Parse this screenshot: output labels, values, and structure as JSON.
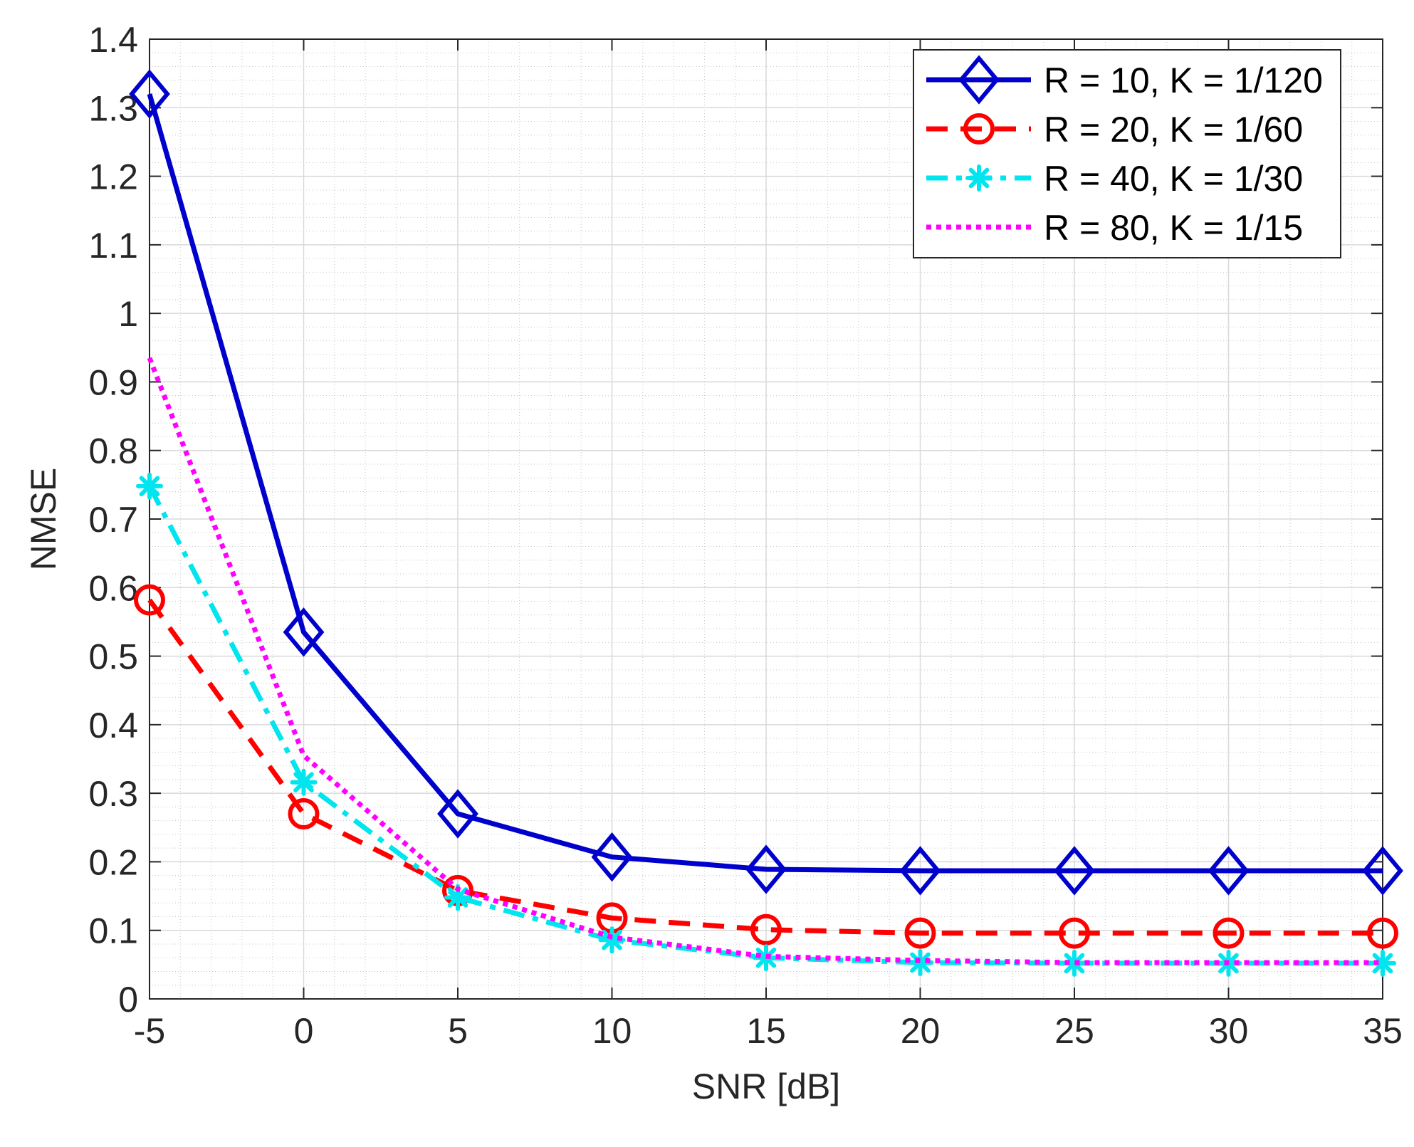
{
  "chart_data": {
    "type": "line",
    "title": "",
    "xlabel": "SNR [dB]",
    "ylabel": "NMSE",
    "xlim": [
      -5,
      35
    ],
    "ylim": [
      0,
      1.4
    ],
    "xticks": [
      -5,
      0,
      5,
      10,
      15,
      20,
      25,
      30,
      35
    ],
    "yticks": [
      0,
      0.1,
      0.2,
      0.3,
      0.4,
      0.5,
      0.6,
      0.7,
      0.8,
      0.9,
      1,
      1.1,
      1.2,
      1.3,
      1.4
    ],
    "xtick_labels": [
      "-5",
      "0",
      "5",
      "10",
      "15",
      "20",
      "25",
      "30",
      "35"
    ],
    "ytick_labels": [
      "0",
      "0.1",
      "0.2",
      "0.3",
      "0.4",
      "0.5",
      "0.6",
      "0.7",
      "0.8",
      "0.9",
      "1",
      "1.1",
      "1.2",
      "1.3",
      "1.4"
    ],
    "grid": true,
    "minor_grid": true,
    "legend_position": "top-right",
    "x": [
      -5,
      0,
      5,
      10,
      15,
      20,
      25,
      30,
      35
    ],
    "series": [
      {
        "name": "R = 10, K = 1/120",
        "color": "#0000cc",
        "line_style": "solid",
        "marker": "diamond",
        "values": [
          1.32,
          0.535,
          0.27,
          0.207,
          0.189,
          0.187,
          0.187,
          0.187,
          0.187
        ]
      },
      {
        "name": "R = 20, K = 1/60",
        "color": "#ff0000",
        "line_style": "dashed",
        "marker": "circle",
        "values": [
          0.582,
          0.27,
          0.158,
          0.118,
          0.101,
          0.096,
          0.096,
          0.096,
          0.096
        ]
      },
      {
        "name": "R = 40, K = 1/30",
        "color": "#00e5ee",
        "line_style": "dashdot",
        "marker": "asterisk",
        "values": [
          0.748,
          0.316,
          0.148,
          0.086,
          0.06,
          0.053,
          0.052,
          0.052,
          0.052
        ]
      },
      {
        "name": "R = 80, K = 1/15",
        "color": "#ff00ff",
        "line_style": "dotted",
        "marker": "none",
        "values": [
          0.935,
          0.355,
          0.16,
          0.09,
          0.062,
          0.056,
          0.053,
          0.053,
          0.053
        ]
      }
    ]
  }
}
